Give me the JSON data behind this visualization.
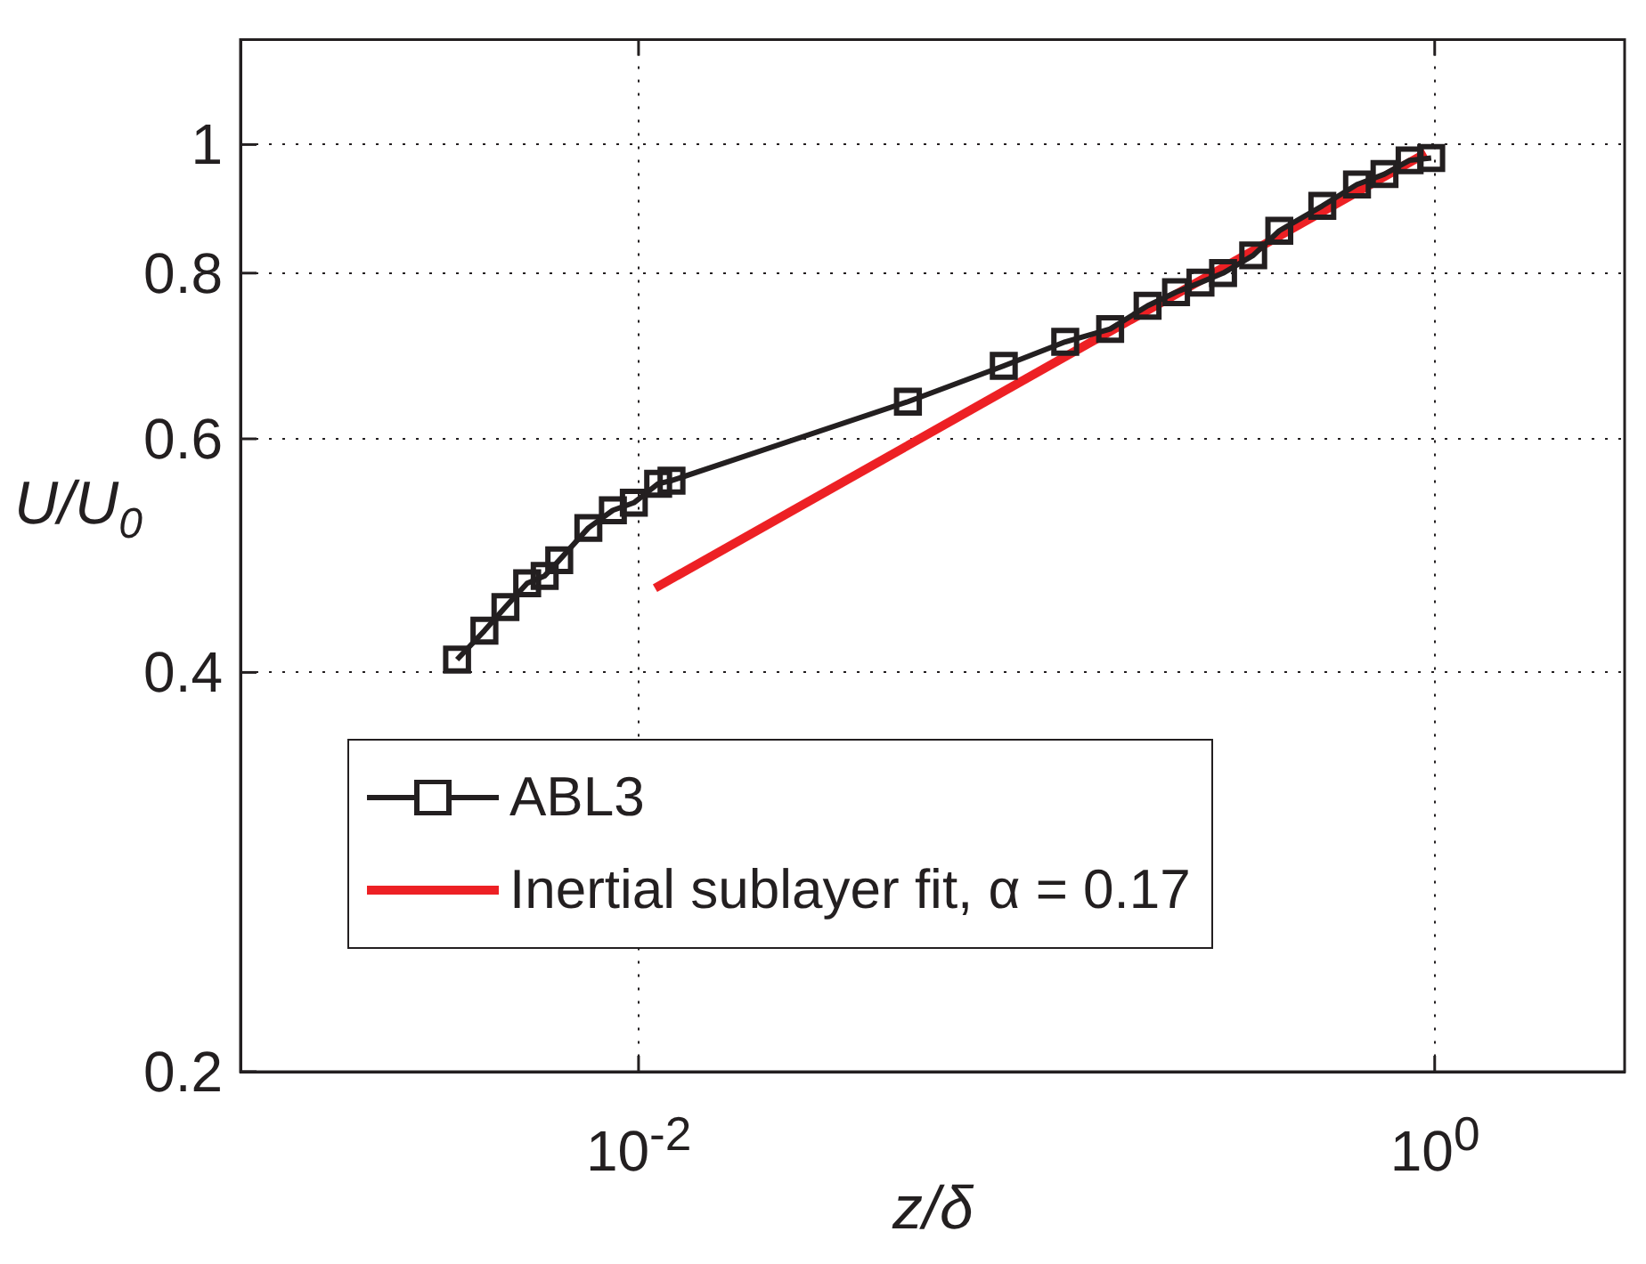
{
  "chart_data": {
    "type": "line",
    "xlabel": "z/δ",
    "ylabel": "U/U$_{0}$",
    "log": "xy",
    "grid": true,
    "legend": "bottom left",
    "xlim": [
      0.001,
      3
    ],
    "ylim": [
      0.2,
      1.2
    ],
    "xticks": [
      {
        "value": 0.01,
        "label": "10$^{-2}$"
      },
      {
        "value": 1,
        "label": "10$^{0}$"
      }
    ],
    "yticks": [
      0.2,
      0.4,
      0.6,
      0.8,
      1
    ],
    "series": [
      {
        "name": "ABL3",
        "color": "#231f20",
        "marker": "square",
        "line_style": "solid",
        "x": [
          0.0035,
          0.0041,
          0.00463,
          0.00525,
          0.00581,
          0.00632,
          0.00748,
          0.00862,
          0.00973,
          0.0112,
          0.0121,
          0.0475,
          0.0827,
          0.118,
          0.153,
          0.19,
          0.224,
          0.258,
          0.294,
          0.35,
          0.407,
          0.522,
          0.638,
          0.748,
          0.865,
          0.98
        ],
        "values": [
          0.409,
          0.43,
          0.448,
          0.467,
          0.473,
          0.486,
          0.514,
          0.53,
          0.537,
          0.555,
          0.558,
          0.64,
          0.681,
          0.71,
          0.726,
          0.756,
          0.774,
          0.787,
          0.8,
          0.825,
          0.861,
          0.899,
          0.933,
          0.95,
          0.973,
          0.977
        ]
      },
      {
        "name": "Inertial sublayer fit, α = 0.17",
        "color": "#ed2024",
        "marker": "none",
        "line_style": "solid",
        "x": [
          0.011,
          0.95
        ],
        "values": [
          0.463,
          0.985
        ]
      }
    ]
  }
}
